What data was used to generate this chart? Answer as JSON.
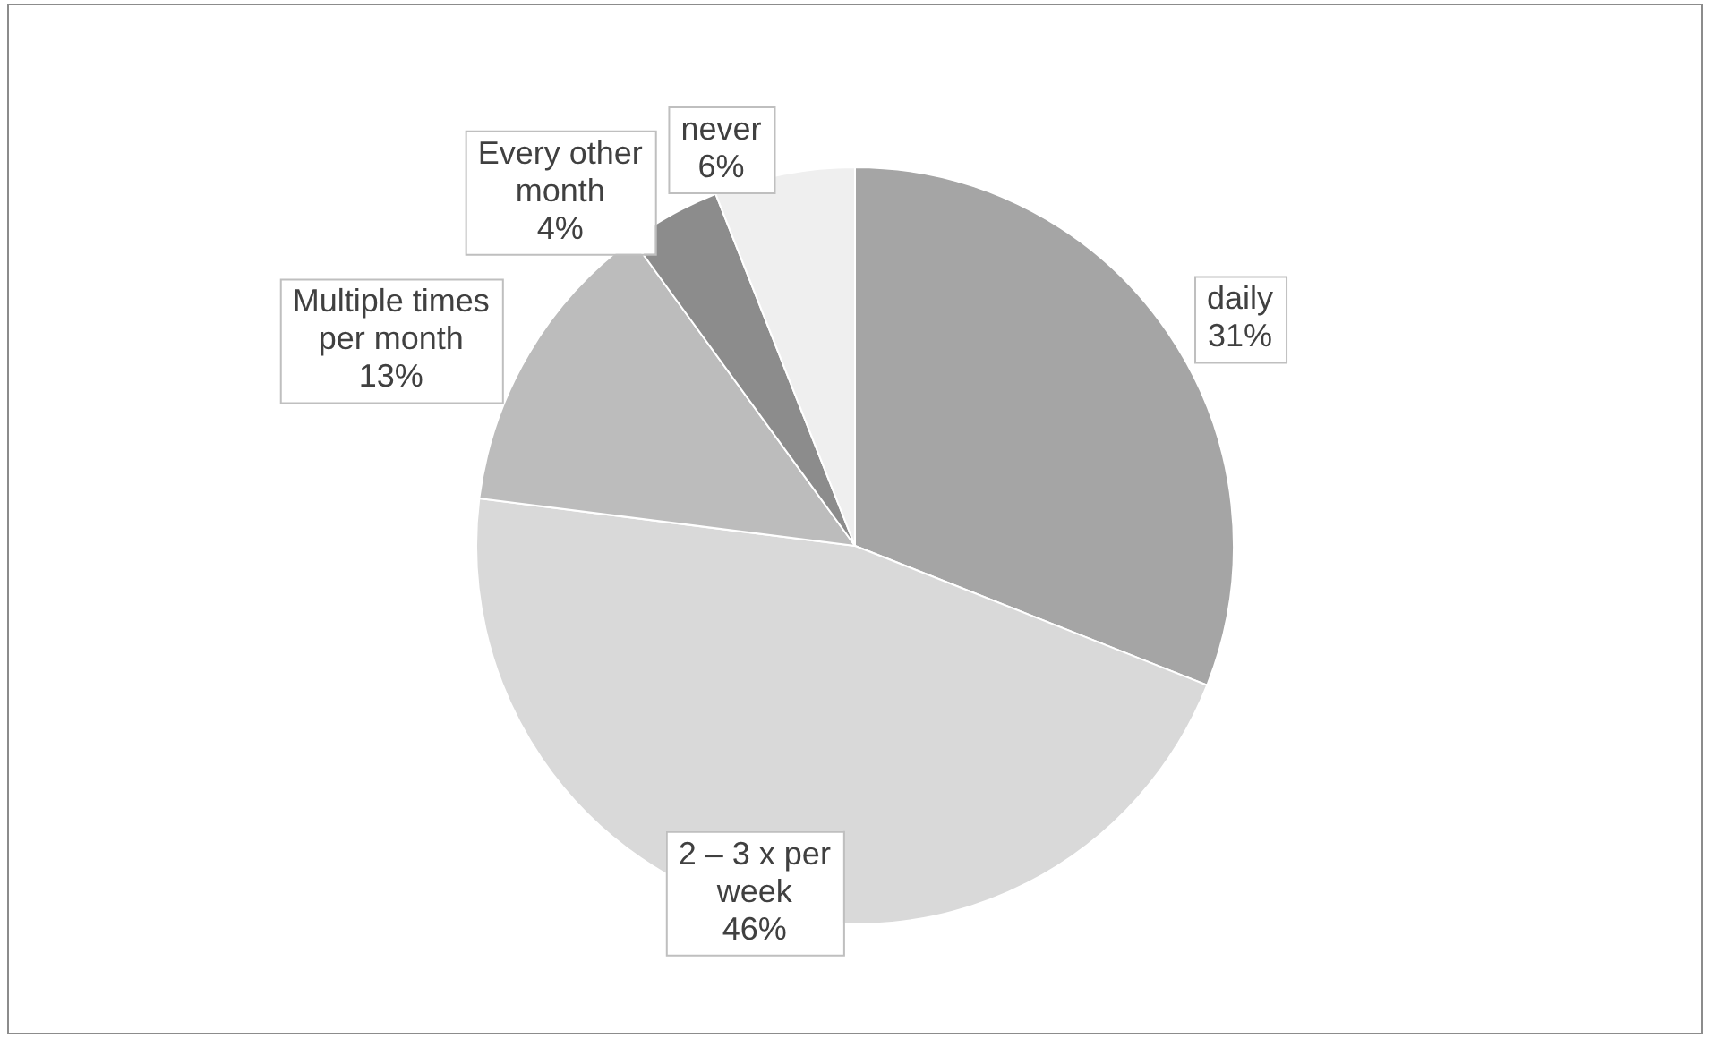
{
  "chart_data": {
    "type": "pie",
    "categories": [
      "daily",
      "2 – 3 x per week",
      "Multiple times per month",
      "Every other month",
      "never"
    ],
    "values": [
      31,
      46,
      13,
      4,
      6
    ],
    "value_labels": [
      "31%",
      "46%",
      "13%",
      "4%",
      "6%"
    ],
    "colors": [
      "#a5a5a5",
      "#d9d9d9",
      "#bcbcbc",
      "#8c8c8c",
      "#efefef"
    ],
    "legend": false
  }
}
